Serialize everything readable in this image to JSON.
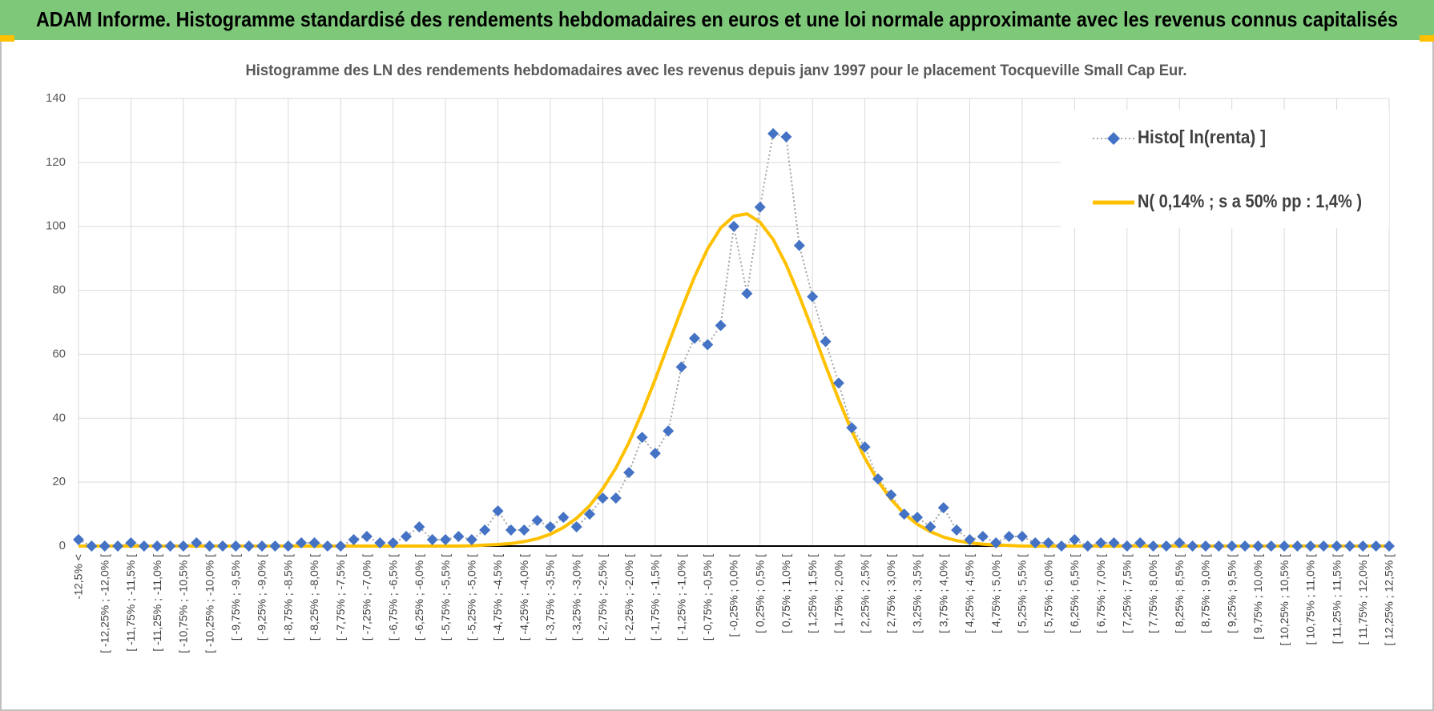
{
  "header": {
    "title": "ADAM Informe. Histogramme standardisé des rendements hebdomadaires en euros et une loi normale approximante avec les revenus connus capitalisés"
  },
  "chart_data": {
    "type": "line",
    "title": "Histogramme des LN des rendements hebdomadaires avec les revenus depuis janv 1997 pour le placement Tocqueville Small Cap Eur.",
    "categories": [
      "-12,5% <",
      null,
      "[ -12,25% ; -12,0% [",
      null,
      "[ -11,75% ; -11,5% [",
      null,
      "[ -11,25% ; -11,0% [",
      null,
      "[ -10,75% ; -10,5% [",
      null,
      "[ -10,25% ; -10,0% [",
      null,
      "[ -9,75% ; -9,5% [",
      null,
      "[ -9,25% ; -9,0% [",
      null,
      "[ -8,75% ; -8,5% [",
      null,
      "[ -8,25% ; -8,0% [",
      null,
      "[ -7,75% ; -7,5% [",
      null,
      "[ -7,25% ; -7,0% [",
      null,
      "[ -6,75% ; -6,5% [",
      null,
      "[ -6,25% ; -6,0% [",
      null,
      "[ -5,75% ; -5,5% [",
      null,
      "[ -5,25% ; -5,0% [",
      null,
      "[ -4,75% ; -4,5% [",
      null,
      "[ -4,25% ; -4,0% [",
      null,
      "[ -3,75% ; -3,5% [",
      null,
      "[ -3,25% ; -3,0% [",
      null,
      "[ -2,75% ; -2,5% [",
      null,
      "[ -2,25% ; -2,0% [",
      null,
      "[ -1,75% ; -1,5% [",
      null,
      "[ -1,25% ; -1,0% [",
      null,
      "[ -0,75% ; -0,5% [",
      null,
      "[ -0,25% ; 0,0% [",
      null,
      "[ 0,25% ; 0,5% [",
      null,
      "[ 0,75% ; 1,0% [",
      null,
      "[ 1,25% ; 1,5% [",
      null,
      "[ 1,75% ; 2,0% [",
      null,
      "[ 2,25% ; 2,5% [",
      null,
      "[ 2,75% ; 3,0% [",
      null,
      "[ 3,25% ; 3,5% [",
      null,
      "[ 3,75% ; 4,0% [",
      null,
      "[ 4,25% ; 4,5% [",
      null,
      "[ 4,75% ; 5,0% [",
      null,
      "[ 5,25% ; 5,5% [",
      null,
      "[ 5,75% ; 6,0% [",
      null,
      "[ 6,25% ; 6,5% [",
      null,
      "[ 6,75% ; 7,0% [",
      null,
      "[ 7,25% ; 7,5% [",
      null,
      "[ 7,75% ; 8,0% [",
      null,
      "[ 8,25% ; 8,5% [",
      null,
      "[ 8,75% ; 9,0% [",
      null,
      "[ 9,25% ; 9,5% [",
      null,
      "[ 9,75% ; 10,0% [",
      null,
      "[ 10,25% ; 10,5% [",
      null,
      "[ 10,75% ; 11,0% [",
      null,
      "[ 11,25% ; 11,5% [",
      null,
      "[ 11,75% ; 12,0% [",
      null,
      "[ 12,25% ; 12,5% ["
    ],
    "series": [
      {
        "name": "Histo[ ln(renta) ]",
        "color": "#4472c4",
        "values": [
          2,
          0,
          0,
          0,
          1,
          0,
          0,
          0,
          0,
          1,
          0,
          0,
          0,
          0,
          0,
          0,
          0,
          1,
          1,
          0,
          0,
          2,
          3,
          1,
          1,
          3,
          6,
          2,
          2,
          3,
          2,
          5,
          11,
          5,
          5,
          8,
          6,
          9,
          6,
          10,
          15,
          15,
          23,
          34,
          29,
          36,
          56,
          65,
          63,
          69,
          100,
          79,
          106,
          129,
          128,
          94,
          78,
          64,
          51,
          37,
          31,
          21,
          16,
          10,
          9,
          6,
          12,
          5,
          2,
          3,
          1,
          3,
          3,
          1,
          1,
          0,
          2,
          0,
          1,
          1,
          0,
          1,
          0,
          0,
          1,
          0,
          0,
          0,
          0,
          0,
          0,
          0,
          0,
          0,
          0,
          0,
          0,
          0,
          0,
          0,
          0
        ]
      },
      {
        "name": "N( 0,14% ; s a 50% pp : 1,4% )",
        "color": "#ffc000",
        "values": [
          0,
          0,
          0,
          0,
          0,
          0,
          0,
          0,
          0,
          0,
          0,
          0,
          0,
          0,
          0,
          0,
          0,
          0,
          0,
          0,
          0,
          0,
          0,
          0,
          0,
          0,
          0,
          0,
          0,
          0,
          0.1,
          0.3,
          0.5,
          0.8,
          1.4,
          2.3,
          3.7,
          5.8,
          8.7,
          12.6,
          17.9,
          24.4,
          32.4,
          41.8,
          52.1,
          63.1,
          74.0,
          84.2,
          93.0,
          99.5,
          103.2,
          103.9,
          101.3,
          95.9,
          88.0,
          78.2,
          67.5,
          56.5,
          45.8,
          36.0,
          27.5,
          20.3,
          14.6,
          10.1,
          6.8,
          4.5,
          2.8,
          1.7,
          1.0,
          0.6,
          0.3,
          0.2,
          0,
          0,
          0,
          0,
          0,
          0,
          0,
          0,
          0,
          0,
          0,
          0,
          0,
          0,
          0,
          0,
          0,
          0,
          0,
          0,
          0,
          0,
          0,
          0,
          0,
          0,
          0,
          0,
          0
        ]
      }
    ],
    "ylim": [
      0,
      140
    ],
    "yticks": [
      0,
      20,
      40,
      60,
      80,
      100,
      120,
      140
    ],
    "grid": true,
    "legend": "upper right"
  }
}
